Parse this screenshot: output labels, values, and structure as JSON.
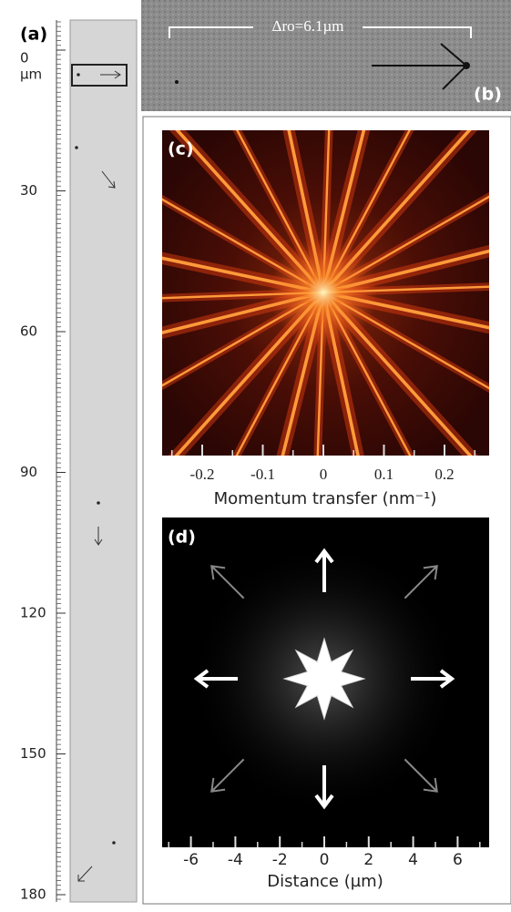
{
  "panel_a": {
    "label": "(a)",
    "unit": "µm",
    "ticks": [
      0,
      30,
      60,
      90,
      120,
      150,
      180
    ]
  },
  "panel_b": {
    "label": "(b)",
    "scale_bar": "Δro=6.1µm"
  },
  "panel_c": {
    "label": "(c)",
    "x_label": "Momentum transfer (nm⁻¹)",
    "xticks": [
      -0.2,
      -0.1,
      0,
      0.1,
      0.2
    ]
  },
  "panel_d": {
    "label": "(d)",
    "x_label": "Distance (µm)",
    "xticks": [
      -6,
      -4,
      -2,
      0,
      2,
      4,
      6
    ]
  }
}
